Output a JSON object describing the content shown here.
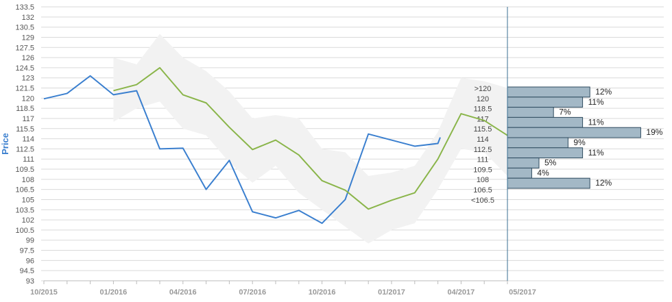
{
  "chart_data": {
    "type": "line",
    "ylabel": "Price",
    "ylim": [
      93,
      133.5
    ],
    "y_ticks": [
      "93",
      "94.5",
      "96",
      "97.5",
      "99",
      "100.5",
      "102",
      "103.5",
      "105",
      "106.5",
      "108",
      "109.5",
      "111",
      "112.5",
      "114",
      "115.5",
      "117",
      "118.5",
      "120",
      "121.5",
      "123",
      "124.5",
      "126",
      "127.5",
      "129",
      "130.5",
      "132",
      "133.5"
    ],
    "x_tick_labels": [
      "10/2015",
      "01/2016",
      "04/2016",
      "07/2016",
      "10/2016",
      "01/2017",
      "04/2017",
      "05/2017"
    ],
    "x_months": [
      "2015-10",
      "2015-11",
      "2015-12",
      "2016-01",
      "2016-02",
      "2016-03",
      "2016-04",
      "2016-05",
      "2016-06",
      "2016-07",
      "2016-08",
      "2016-09",
      "2016-10",
      "2016-11",
      "2016-12",
      "2017-01",
      "2017-02",
      "2017-03",
      "2017-04",
      "2017-05",
      "2017-06"
    ],
    "grid": true,
    "series": [
      {
        "color": "#3a7fcf",
        "points": [
          {
            "x": "2015-10",
            "y": 119.9
          },
          {
            "x": "2015-11",
            "y": 120.7
          },
          {
            "x": "2015-12",
            "y": 123.3
          },
          {
            "x": "2016-01",
            "y": 120.5
          },
          {
            "x": "2016-02",
            "y": 121.1
          },
          {
            "x": "2016-03",
            "y": 112.5
          },
          {
            "x": "2016-04",
            "y": 112.6
          },
          {
            "x": "2016-05",
            "y": 106.5
          },
          {
            "x": "2016-06",
            "y": 110.8
          },
          {
            "x": "2016-07",
            "y": 103.2
          },
          {
            "x": "2016-08",
            "y": 102.3
          },
          {
            "x": "2016-09",
            "y": 103.4
          },
          {
            "x": "2016-10",
            "y": 101.5
          },
          {
            "x": "2016-11",
            "y": 105.0
          },
          {
            "x": "2016-12",
            "y": 114.7
          },
          {
            "x": "2017-02",
            "y": 112.9
          },
          {
            "x": "2017-03",
            "y": 113.3
          },
          {
            "x": "2017-03.1",
            "y": 114.2
          }
        ]
      },
      {
        "color": "#8ab54a",
        "points": [
          {
            "x": "2016-01",
            "y": 121.1
          },
          {
            "x": "2016-02",
            "y": 122.0
          },
          {
            "x": "2016-03",
            "y": 124.5
          },
          {
            "x": "2016-04",
            "y": 120.5
          },
          {
            "x": "2016-05",
            "y": 119.3
          },
          {
            "x": "2016-06",
            "y": 115.7
          },
          {
            "x": "2016-07",
            "y": 112.4
          },
          {
            "x": "2016-08",
            "y": 113.8
          },
          {
            "x": "2016-09",
            "y": 111.6
          },
          {
            "x": "2016-10",
            "y": 107.8
          },
          {
            "x": "2016-11",
            "y": 106.4
          },
          {
            "x": "2016-12",
            "y": 103.6
          },
          {
            "x": "2017-01",
            "y": 104.9
          },
          {
            "x": "2017-02",
            "y": 106.0
          },
          {
            "x": "2017-03",
            "y": 111.0
          },
          {
            "x": "2017-04",
            "y": 117.7
          },
          {
            "x": "2017-05",
            "y": 116.7
          },
          {
            "x": "2017-06",
            "y": 114.5
          }
        ]
      }
    ],
    "band": {
      "color": "#f2f2f2",
      "upper": [
        {
          "x": "2016-01",
          "y": 126.0
        },
        {
          "x": "2016-02",
          "y": 125.0
        },
        {
          "x": "2016-03",
          "y": 129.5
        },
        {
          "x": "2016-04",
          "y": 126.0
        },
        {
          "x": "2016-05",
          "y": 124.0
        },
        {
          "x": "2016-06",
          "y": 121.0
        },
        {
          "x": "2016-07",
          "y": 117.0
        },
        {
          "x": "2016-08",
          "y": 117.5
        },
        {
          "x": "2016-09",
          "y": 117.0
        },
        {
          "x": "2016-10",
          "y": 112.5
        },
        {
          "x": "2016-11",
          "y": 112.0
        },
        {
          "x": "2016-12",
          "y": 108.5
        },
        {
          "x": "2017-01",
          "y": 109.0
        },
        {
          "x": "2017-02",
          "y": 110.0
        },
        {
          "x": "2017-03",
          "y": 115.0
        },
        {
          "x": "2017-04",
          "y": 123.0
        },
        {
          "x": "2017-05",
          "y": 122.5
        },
        {
          "x": "2017-06",
          "y": 121.5
        }
      ],
      "lower": [
        {
          "x": "2016-01",
          "y": 116.5
        },
        {
          "x": "2016-02",
          "y": 118.5
        },
        {
          "x": "2016-03",
          "y": 119.5
        },
        {
          "x": "2016-04",
          "y": 115.5
        },
        {
          "x": "2016-05",
          "y": 114.5
        },
        {
          "x": "2016-06",
          "y": 110.5
        },
        {
          "x": "2016-07",
          "y": 107.5
        },
        {
          "x": "2016-08",
          "y": 110.0
        },
        {
          "x": "2016-09",
          "y": 106.0
        },
        {
          "x": "2016-10",
          "y": 103.5
        },
        {
          "x": "2016-11",
          "y": 101.0
        },
        {
          "x": "2016-12",
          "y": 98.5
        },
        {
          "x": "2017-01",
          "y": 100.5
        },
        {
          "x": "2017-02",
          "y": 101.5
        },
        {
          "x": "2017-03",
          "y": 106.5
        },
        {
          "x": "2017-04",
          "y": 112.5
        },
        {
          "x": "2017-05",
          "y": 112.0
        },
        {
          "x": "2017-06",
          "y": 108.5
        }
      ]
    },
    "distribution": {
      "bar_color": "#a3b8c6",
      "bins": [
        {
          "label": ">120",
          "percent": 12
        },
        {
          "label": "120",
          "percent": 11
        },
        {
          "label": "118.5",
          "percent": 7
        },
        {
          "label": "117",
          "percent": 11
        },
        {
          "label": "115.5",
          "percent": 19
        },
        {
          "label": "114",
          "percent": 9
        },
        {
          "label": "112.5",
          "percent": 11
        },
        {
          "label": "111",
          "percent": 5
        },
        {
          "label": "109.5",
          "percent": 4
        },
        {
          "label": "108",
          "percent": 12
        },
        {
          "label": "106.5",
          "percent": 0
        },
        {
          "label": "<106.5",
          "percent": 0
        }
      ],
      "value_labels": [
        "12%",
        "11%",
        "7%",
        "11%",
        "19%",
        "9%",
        "11%",
        "5%",
        "4%",
        "12%"
      ]
    }
  }
}
